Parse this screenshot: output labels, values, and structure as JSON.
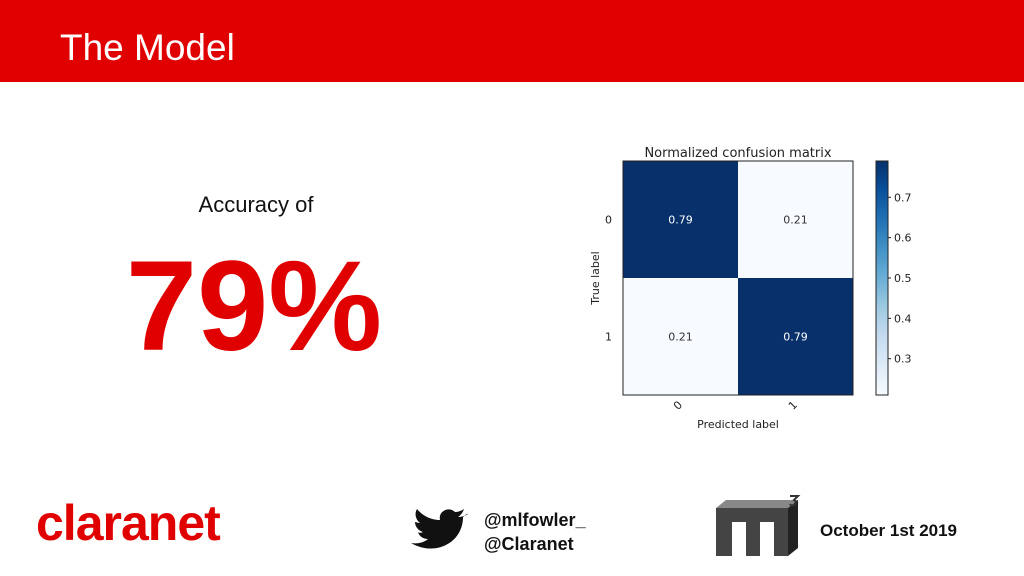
{
  "header": {
    "title": "The Model"
  },
  "accuracy": {
    "label": "Accuracy of",
    "value": "79%"
  },
  "chart_data": {
    "type": "heatmap",
    "title": "Normalized confusion matrix",
    "xlabel": "Predicted label",
    "ylabel": "True label",
    "categories": [
      "0",
      "1"
    ],
    "y_categories": [
      "0",
      "1"
    ],
    "values": [
      [
        0.79,
        0.21
      ],
      [
        0.21,
        0.79
      ]
    ],
    "colormap": "Blues",
    "clim": [
      0.21,
      0.79
    ],
    "colorbar_ticks": [
      0.3,
      0.4,
      0.5,
      0.6,
      0.7
    ]
  },
  "footer": {
    "logo": "claranet",
    "handles": [
      "@mlfowler_",
      "@Claranet"
    ],
    "date": "October 1st 2019"
  }
}
